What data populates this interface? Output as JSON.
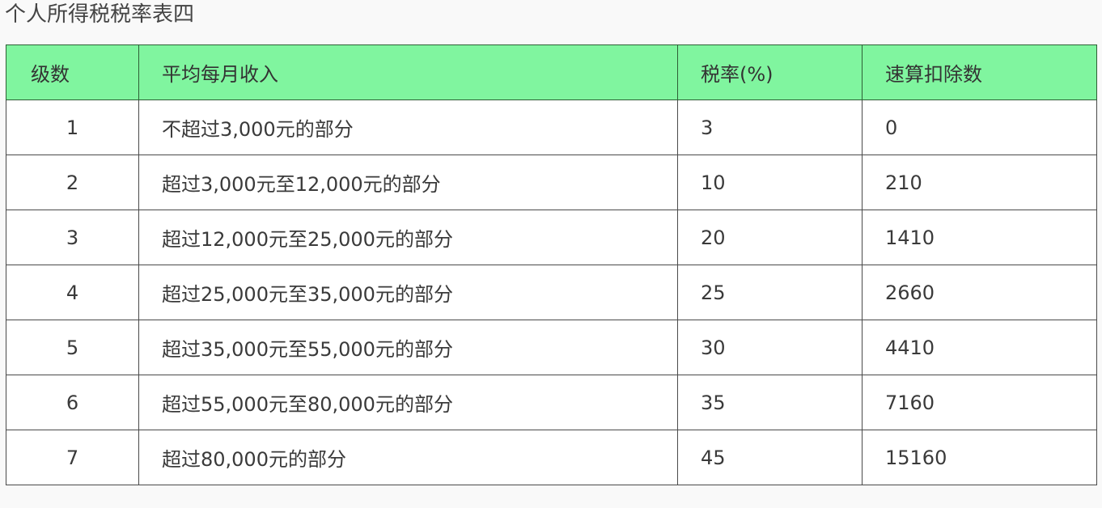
{
  "title": "个人所得税税率表四",
  "colors": {
    "header_bg": "#80f59f"
  },
  "table": {
    "headers": [
      "级数",
      "平均每月收入",
      "税率(%)",
      "速算扣除数"
    ],
    "rows": [
      [
        "1",
        "不超过3,000元的部分",
        "3",
        "0"
      ],
      [
        "2",
        "超过3,000元至12,000元的部分",
        "10",
        "210"
      ],
      [
        "3",
        "超过12,000元至25,000元的部分",
        "20",
        "1410"
      ],
      [
        "4",
        "超过25,000元至35,000元的部分",
        "25",
        "2660"
      ],
      [
        "5",
        "超过35,000元至55,000元的部分",
        "30",
        "4410"
      ],
      [
        "6",
        "超过55,000元至80,000元的部分",
        "35",
        "7160"
      ],
      [
        "7",
        "超过80,000元的部分",
        "45",
        "15160"
      ]
    ]
  }
}
